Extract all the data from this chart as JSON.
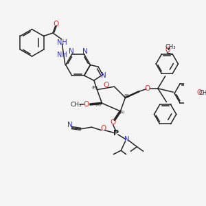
{
  "bg": "#f5f5f5",
  "lc": "#222222",
  "bc": "#3333bb",
  "rc": "#cc3333",
  "lw": 1.1,
  "lw_thin": 0.8,
  "lw_thick": 1.5,
  "figsize": [
    3.0,
    3.0
  ],
  "dpi": 100,
  "xlim": [
    0,
    300
  ],
  "ylim": [
    0,
    300
  ]
}
